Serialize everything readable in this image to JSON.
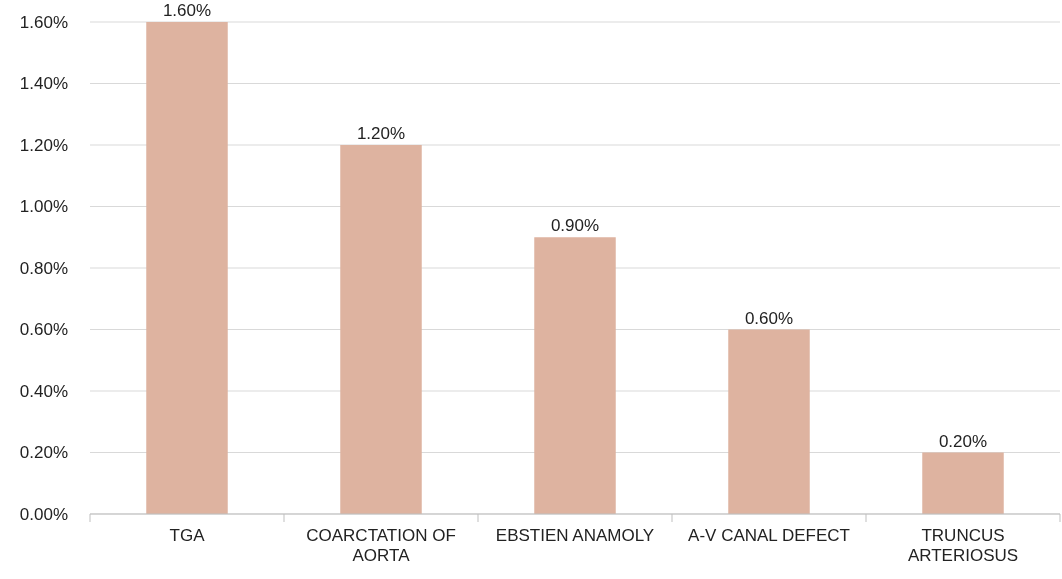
{
  "chart_data": {
    "type": "bar",
    "categories": [
      "TGA",
      "COARCTATION OF AORTA",
      "EBSTIEN ANAMOLY",
      "A-V CANAL DEFECT",
      "TRUNCUS ARTERIOSUS"
    ],
    "values": [
      1.6,
      1.2,
      0.9,
      0.6,
      0.2
    ],
    "value_labels": [
      "1.60%",
      "1.20%",
      "0.90%",
      "0.60%",
      "0.20%"
    ],
    "color": "#deb3a0",
    "ylim": [
      0,
      1.6
    ],
    "yticks": [
      {
        "value": 0,
        "label": "0.00%"
      },
      {
        "value": 0.2,
        "label": "0.20%"
      },
      {
        "value": 0.4,
        "label": "0.40%"
      },
      {
        "value": 0.6,
        "label": "0.60%"
      },
      {
        "value": 0.8,
        "label": "0.80%"
      },
      {
        "value": 1,
        "label": "1.00%"
      },
      {
        "value": 1.2,
        "label": "1.20%"
      },
      {
        "value": 1.4,
        "label": "1.40%"
      },
      {
        "value": 1.6,
        "label": "1.60%"
      }
    ],
    "grid": "y"
  }
}
